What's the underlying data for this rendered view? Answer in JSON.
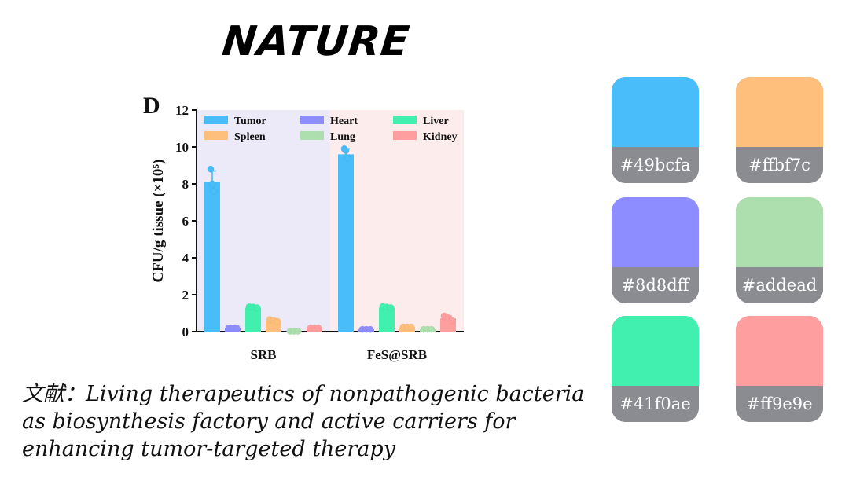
{
  "header": {
    "brand": "NATURE"
  },
  "citation": {
    "lines": [
      "文献：Living therapeutics of nonpathogenic bacteria",
      "as biosynthesis factory and active carriers for",
      "enhancing tumor-targeted therapy"
    ]
  },
  "palette": [
    {
      "hex": "#49bcfa"
    },
    {
      "hex": "#ffbf7c"
    },
    {
      "hex": "#8d8dff"
    },
    {
      "hex": "#addead"
    },
    {
      "hex": "#41f0ae"
    },
    {
      "hex": "#ff9e9e"
    }
  ],
  "chart_data": {
    "type": "bar",
    "panel_label": "D",
    "categories": [
      "SRB",
      "FeS@SRB"
    ],
    "series": [
      {
        "name": "Tumor",
        "color": "#49bcfa",
        "values": [
          8.1,
          9.6
        ],
        "error": [
          0.6,
          0.3
        ],
        "points": [
          [
            8.8,
            8.0,
            7.6
          ],
          [
            9.9,
            9.8,
            9.4
          ]
        ]
      },
      {
        "name": "Heart",
        "color": "#8d8dff",
        "values": [
          0.2,
          0.12
        ],
        "error": [
          0.03,
          0.03
        ],
        "points": [
          [
            0.2,
            0.2,
            0.2
          ],
          [
            0.12,
            0.12,
            0.12
          ]
        ]
      },
      {
        "name": "Liver",
        "color": "#41f0ae",
        "values": [
          1.3,
          1.3
        ],
        "error": [
          0.05,
          0.05
        ],
        "points": [
          [
            1.35,
            1.33,
            1.3
          ],
          [
            1.36,
            1.33,
            1.3
          ]
        ]
      },
      {
        "name": "Spleen",
        "color": "#ffbf7c",
        "values": [
          0.6,
          0.25
        ],
        "error": [
          0.1,
          0.03
        ],
        "points": [
          [
            0.65,
            0.6,
            0.55
          ],
          [
            0.25,
            0.25,
            0.25
          ]
        ]
      },
      {
        "name": "Lung",
        "color": "#addead",
        "values": [
          0.02,
          0.12
        ],
        "error": [
          0.02,
          0.03
        ],
        "points": [
          [
            0.02,
            0.02,
            0.02
          ],
          [
            0.12,
            0.12,
            0.12
          ]
        ]
      },
      {
        "name": "Kidney",
        "color": "#ff9e9e",
        "values": [
          0.2,
          0.72
        ],
        "error": [
          0.03,
          0.12
        ],
        "points": [
          [
            0.2,
            0.2,
            0.2
          ],
          [
            0.85,
            0.75,
            0.6
          ]
        ]
      }
    ],
    "ylabel": "CFU/g tissue (×10⁵)",
    "ylim": [
      0,
      12
    ],
    "yticks": [
      0,
      2,
      4,
      6,
      8,
      10,
      12
    ],
    "group_backgrounds": [
      "#eceaf9",
      "#fcecec"
    ],
    "legend": "top, 3 columns"
  }
}
